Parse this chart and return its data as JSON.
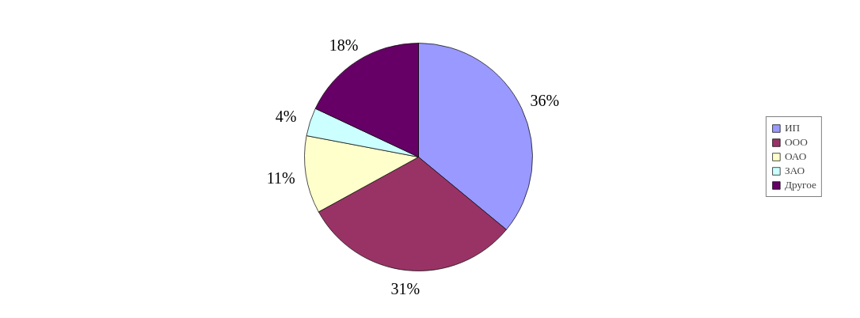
{
  "chart_data": {
    "type": "pie",
    "categories": [
      "ИП",
      "ООО",
      "ОАО",
      "ЗАО",
      "Другое"
    ],
    "values": [
      36,
      31,
      11,
      4,
      18
    ],
    "colors": [
      "#9999ff",
      "#993366",
      "#ffffcc",
      "#ccffff",
      "#660066"
    ],
    "value_labels": [
      "36%",
      "31%",
      "11%",
      "4%",
      "18%"
    ],
    "legend": "right"
  }
}
